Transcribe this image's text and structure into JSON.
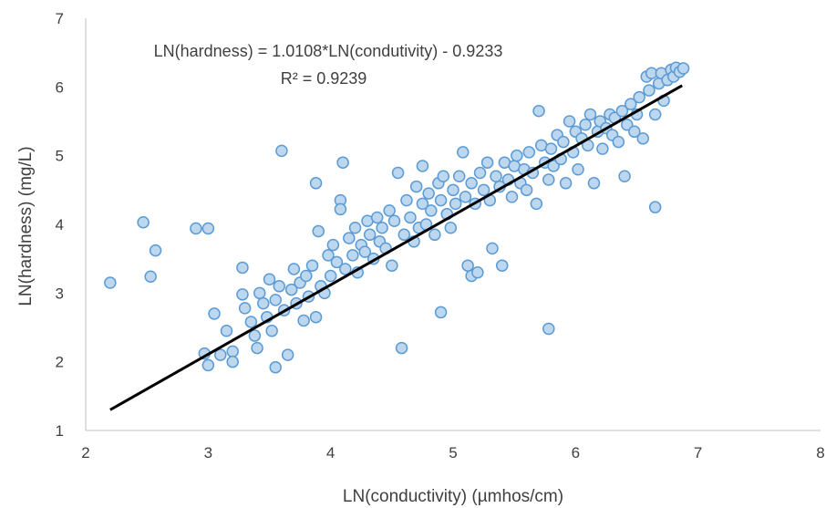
{
  "chart_data": {
    "type": "scatter",
    "xlabel": "LN(conductivity) (µmhos/cm)",
    "ylabel": "LN(hardness) (mg/L)",
    "xlim": [
      2,
      8
    ],
    "ylim": [
      1,
      7
    ],
    "xticks": [
      2,
      3,
      4,
      5,
      6,
      7,
      8
    ],
    "yticks": [
      1,
      2,
      3,
      4,
      5,
      6,
      7
    ],
    "grid": false,
    "legend": "none",
    "marker_fill": "#BDD7EE",
    "marker_edge": "#5B9BD5",
    "line_color": "#000000",
    "annotations": {
      "equation": "LN(hardness) = 1.0108*LN(condutivity) - 0.9233",
      "r_squared": "R² = 0.9239"
    },
    "trendline": {
      "slope": 1.0108,
      "intercept": -0.9233,
      "x_range": [
        2.2,
        6.87
      ]
    },
    "points": [
      [
        2.2,
        3.15
      ],
      [
        2.47,
        4.03
      ],
      [
        2.53,
        3.24
      ],
      [
        2.57,
        3.62
      ],
      [
        2.9,
        3.94
      ],
      [
        3.0,
        3.94
      ],
      [
        2.97,
        2.12
      ],
      [
        3.0,
        1.95
      ],
      [
        3.05,
        2.7
      ],
      [
        3.1,
        2.1
      ],
      [
        3.15,
        2.45
      ],
      [
        3.2,
        2.15
      ],
      [
        3.2,
        2.0
      ],
      [
        3.28,
        3.37
      ],
      [
        3.28,
        2.98
      ],
      [
        3.3,
        2.78
      ],
      [
        3.35,
        2.58
      ],
      [
        3.38,
        2.38
      ],
      [
        3.4,
        2.2
      ],
      [
        3.42,
        3.0
      ],
      [
        3.45,
        2.85
      ],
      [
        3.48,
        2.65
      ],
      [
        3.5,
        3.2
      ],
      [
        3.52,
        2.45
      ],
      [
        3.55,
        1.92
      ],
      [
        3.55,
        2.9
      ],
      [
        3.58,
        3.1
      ],
      [
        3.6,
        5.07
      ],
      [
        3.62,
        2.75
      ],
      [
        3.65,
        2.1
      ],
      [
        3.68,
        3.05
      ],
      [
        3.7,
        3.35
      ],
      [
        3.72,
        2.85
      ],
      [
        3.75,
        3.15
      ],
      [
        3.78,
        2.6
      ],
      [
        3.8,
        3.25
      ],
      [
        3.82,
        2.95
      ],
      [
        3.85,
        3.4
      ],
      [
        3.88,
        4.6
      ],
      [
        3.88,
        2.65
      ],
      [
        3.9,
        3.9
      ],
      [
        3.92,
        3.1
      ],
      [
        3.95,
        3.0
      ],
      [
        3.98,
        3.55
      ],
      [
        4.0,
        3.25
      ],
      [
        4.02,
        3.7
      ],
      [
        4.05,
        3.45
      ],
      [
        4.08,
        4.35
      ],
      [
        4.08,
        4.22
      ],
      [
        4.1,
        4.9
      ],
      [
        4.12,
        3.35
      ],
      [
        4.15,
        3.8
      ],
      [
        4.18,
        3.55
      ],
      [
        4.2,
        3.95
      ],
      [
        4.22,
        3.3
      ],
      [
        4.25,
        3.7
      ],
      [
        4.28,
        3.6
      ],
      [
        4.3,
        4.05
      ],
      [
        4.32,
        3.85
      ],
      [
        4.35,
        3.5
      ],
      [
        4.38,
        4.1
      ],
      [
        4.4,
        3.75
      ],
      [
        4.42,
        3.95
      ],
      [
        4.45,
        3.65
      ],
      [
        4.48,
        4.2
      ],
      [
        4.5,
        3.4
      ],
      [
        4.52,
        4.05
      ],
      [
        4.55,
        4.75
      ],
      [
        4.58,
        2.2
      ],
      [
        4.6,
        3.85
      ],
      [
        4.62,
        4.35
      ],
      [
        4.65,
        4.1
      ],
      [
        4.68,
        3.75
      ],
      [
        4.7,
        4.55
      ],
      [
        4.72,
        3.95
      ],
      [
        4.75,
        4.85
      ],
      [
        4.75,
        4.3
      ],
      [
        4.78,
        4.0
      ],
      [
        4.8,
        4.45
      ],
      [
        4.82,
        4.2
      ],
      [
        4.85,
        3.85
      ],
      [
        4.88,
        4.6
      ],
      [
        4.9,
        2.72
      ],
      [
        4.9,
        4.35
      ],
      [
        4.92,
        4.7
      ],
      [
        4.95,
        4.15
      ],
      [
        4.98,
        3.95
      ],
      [
        5.0,
        4.5
      ],
      [
        5.02,
        4.3
      ],
      [
        5.05,
        4.7
      ],
      [
        5.08,
        5.05
      ],
      [
        5.1,
        4.4
      ],
      [
        5.12,
        3.4
      ],
      [
        5.15,
        3.25
      ],
      [
        5.15,
        4.6
      ],
      [
        5.18,
        4.3
      ],
      [
        5.2,
        3.3
      ],
      [
        5.22,
        4.75
      ],
      [
        5.25,
        4.5
      ],
      [
        5.28,
        4.9
      ],
      [
        5.3,
        4.35
      ],
      [
        5.32,
        3.65
      ],
      [
        5.35,
        4.7
      ],
      [
        5.38,
        4.55
      ],
      [
        5.4,
        3.4
      ],
      [
        5.42,
        4.9
      ],
      [
        5.45,
        4.65
      ],
      [
        5.48,
        4.4
      ],
      [
        5.5,
        4.85
      ],
      [
        5.52,
        5.0
      ],
      [
        5.55,
        4.6
      ],
      [
        5.58,
        4.8
      ],
      [
        5.6,
        4.5
      ],
      [
        5.62,
        5.05
      ],
      [
        5.65,
        4.75
      ],
      [
        5.68,
        4.3
      ],
      [
        5.7,
        5.65
      ],
      [
        5.72,
        5.15
      ],
      [
        5.75,
        4.9
      ],
      [
        5.78,
        2.48
      ],
      [
        5.78,
        4.65
      ],
      [
        5.8,
        5.1
      ],
      [
        5.82,
        4.85
      ],
      [
        5.85,
        5.3
      ],
      [
        5.88,
        4.95
      ],
      [
        5.9,
        5.2
      ],
      [
        5.92,
        4.6
      ],
      [
        5.95,
        5.5
      ],
      [
        5.98,
        5.05
      ],
      [
        6.0,
        5.35
      ],
      [
        6.02,
        4.8
      ],
      [
        6.05,
        5.25
      ],
      [
        6.08,
        5.45
      ],
      [
        6.1,
        5.15
      ],
      [
        6.12,
        5.6
      ],
      [
        6.15,
        4.6
      ],
      [
        6.18,
        5.35
      ],
      [
        6.2,
        5.5
      ],
      [
        6.22,
        5.1
      ],
      [
        6.25,
        5.4
      ],
      [
        6.28,
        5.6
      ],
      [
        6.3,
        5.3
      ],
      [
        6.32,
        5.55
      ],
      [
        6.35,
        5.2
      ],
      [
        6.38,
        5.65
      ],
      [
        6.4,
        4.7
      ],
      [
        6.42,
        5.45
      ],
      [
        6.45,
        5.75
      ],
      [
        6.48,
        5.35
      ],
      [
        6.5,
        5.6
      ],
      [
        6.52,
        5.85
      ],
      [
        6.55,
        5.25
      ],
      [
        6.58,
        6.15
      ],
      [
        6.6,
        5.95
      ],
      [
        6.62,
        6.2
      ],
      [
        6.65,
        4.25
      ],
      [
        6.65,
        5.6
      ],
      [
        6.68,
        6.05
      ],
      [
        6.7,
        6.2
      ],
      [
        6.72,
        5.8
      ],
      [
        6.75,
        6.1
      ],
      [
        6.78,
        6.25
      ],
      [
        6.8,
        6.15
      ],
      [
        6.82,
        6.28
      ],
      [
        6.85,
        6.22
      ],
      [
        6.88,
        6.27
      ]
    ]
  }
}
